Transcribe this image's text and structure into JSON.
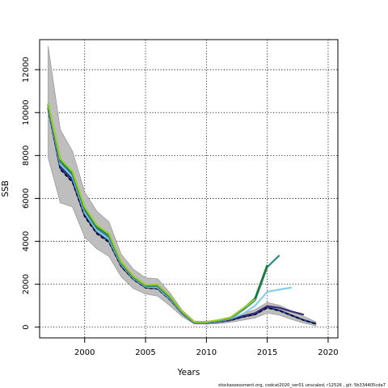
{
  "chart_data": {
    "type": "line",
    "xlabel": "Years",
    "ylabel": "SSB",
    "xlim": [
      1996.3,
      2020.8
    ],
    "ylim": [
      -500,
      13400
    ],
    "xticks": [
      2000,
      2005,
      2010,
      2015,
      2020
    ],
    "yticks": [
      0,
      2000,
      4000,
      6000,
      8000,
      10000,
      12000
    ],
    "grid": true,
    "grid_style": "dotted",
    "footer": "stockassessment.org, codcat2020_ver01  unscaled, r12526 , git: 5b334405cda7",
    "confidence_band": {
      "color": "#bebebe",
      "x": [
        1997,
        1998,
        1999,
        2000,
        2001,
        2002,
        2003,
        2004,
        2005,
        2006,
        2007,
        2008,
        2009,
        2010,
        2011,
        2012,
        2013,
        2014,
        2015,
        2016,
        2017,
        2018,
        2019
      ],
      "upper": [
        13100,
        9200,
        8200,
        6300,
        5400,
        4900,
        3400,
        2700,
        2300,
        2250,
        1600,
        800,
        290,
        260,
        320,
        430,
        630,
        820,
        1150,
        1020,
        750,
        500,
        250
      ],
      "lower": [
        7900,
        5800,
        5600,
        4200,
        3650,
        3300,
        2350,
        1800,
        1550,
        1450,
        1000,
        500,
        150,
        140,
        170,
        230,
        330,
        430,
        660,
        560,
        360,
        190,
        60
      ]
    },
    "series": [
      {
        "color": "#1f3d99",
        "x": [
          1997,
          1998,
          1999,
          2000,
          2001,
          2002,
          2003,
          2004,
          2005,
          2006,
          2007,
          2008,
          2009,
          2010,
          2011,
          2012,
          2013,
          2014,
          2015,
          2016,
          2017,
          2018,
          2019
        ],
        "values": [
          10200,
          7400,
          6800,
          5200,
          4400,
          4000,
          2850,
          2250,
          1850,
          1800,
          1300,
          650,
          200,
          200,
          250,
          330,
          480,
          600,
          920,
          780,
          550,
          330,
          160
        ]
      },
      {
        "color": "#000000",
        "dashed": true,
        "x": [
          1997,
          1998,
          1999,
          2000,
          2001,
          2002,
          2003,
          2004,
          2005,
          2006,
          2007,
          2008,
          2009,
          2010,
          2011,
          2012,
          2013,
          2014,
          2015,
          2016,
          2017,
          2018,
          2019
        ],
        "values": [
          10150,
          7350,
          6750,
          5150,
          4350,
          3950,
          2820,
          2220,
          1830,
          1780,
          1280,
          640,
          195,
          195,
          240,
          320,
          470,
          590,
          900,
          760,
          540,
          320,
          150
        ]
      },
      {
        "color": "#3b2a7a",
        "x": [
          1997,
          1998,
          1999,
          2000,
          2001,
          2002,
          2003,
          2004,
          2005,
          2006,
          2007,
          2008,
          2009,
          2010,
          2011,
          2012,
          2013,
          2014,
          2015,
          2016,
          2017,
          2018
        ],
        "values": [
          10250,
          7500,
          6900,
          5300,
          4450,
          4050,
          2900,
          2270,
          1870,
          1820,
          1320,
          660,
          205,
          205,
          260,
          350,
          520,
          650,
          980,
          900,
          730,
          580
        ]
      },
      {
        "color": "#87ceeb",
        "x": [
          1997,
          1998,
          1999,
          2000,
          2001,
          2002,
          2003,
          2004,
          2005,
          2006,
          2007,
          2008,
          2009,
          2010,
          2011,
          2012,
          2013,
          2014,
          2015,
          2016,
          2017
        ],
        "values": [
          10300,
          7600,
          7000,
          5350,
          4500,
          4100,
          2930,
          2290,
          1890,
          1850,
          1340,
          680,
          215,
          215,
          280,
          400,
          620,
          1000,
          1650,
          1750,
          1850
        ]
      },
      {
        "color": "#2e8b8b",
        "x": [
          1997,
          1998,
          1999,
          2000,
          2001,
          2002,
          2003,
          2004,
          2005,
          2006,
          2007,
          2008,
          2009,
          2010,
          2011,
          2012,
          2013,
          2014,
          2015,
          2016
        ],
        "values": [
          10350,
          7700,
          7100,
          5450,
          4600,
          4200,
          2980,
          2320,
          1920,
          1900,
          1380,
          700,
          225,
          225,
          300,
          430,
          800,
          1250,
          2800,
          3350
        ]
      },
      {
        "color": "#1a7a2e",
        "x": [
          1997,
          1998,
          1999,
          2000,
          2001,
          2002,
          2003,
          2004,
          2005,
          2006,
          2007,
          2008,
          2009,
          2010,
          2011,
          2012,
          2013,
          2014,
          2015
        ],
        "values": [
          10400,
          7800,
          7200,
          5550,
          4700,
          4300,
          3020,
          2350,
          1950,
          1950,
          1420,
          720,
          235,
          235,
          320,
          450,
          850,
          1350,
          2900
        ]
      },
      {
        "color": "#9acd32",
        "x": [
          1997,
          1998,
          1999,
          2000,
          2001,
          2002,
          2003,
          2004,
          2005,
          2006,
          2007,
          2008,
          2009,
          2010,
          2011,
          2012,
          2013,
          2014
        ],
        "values": [
          10450,
          7850,
          7250,
          5600,
          4750,
          4350,
          3050,
          2380,
          1970,
          1980,
          1450,
          740,
          245,
          245,
          330,
          460,
          870,
          1300
        ]
      }
    ]
  }
}
